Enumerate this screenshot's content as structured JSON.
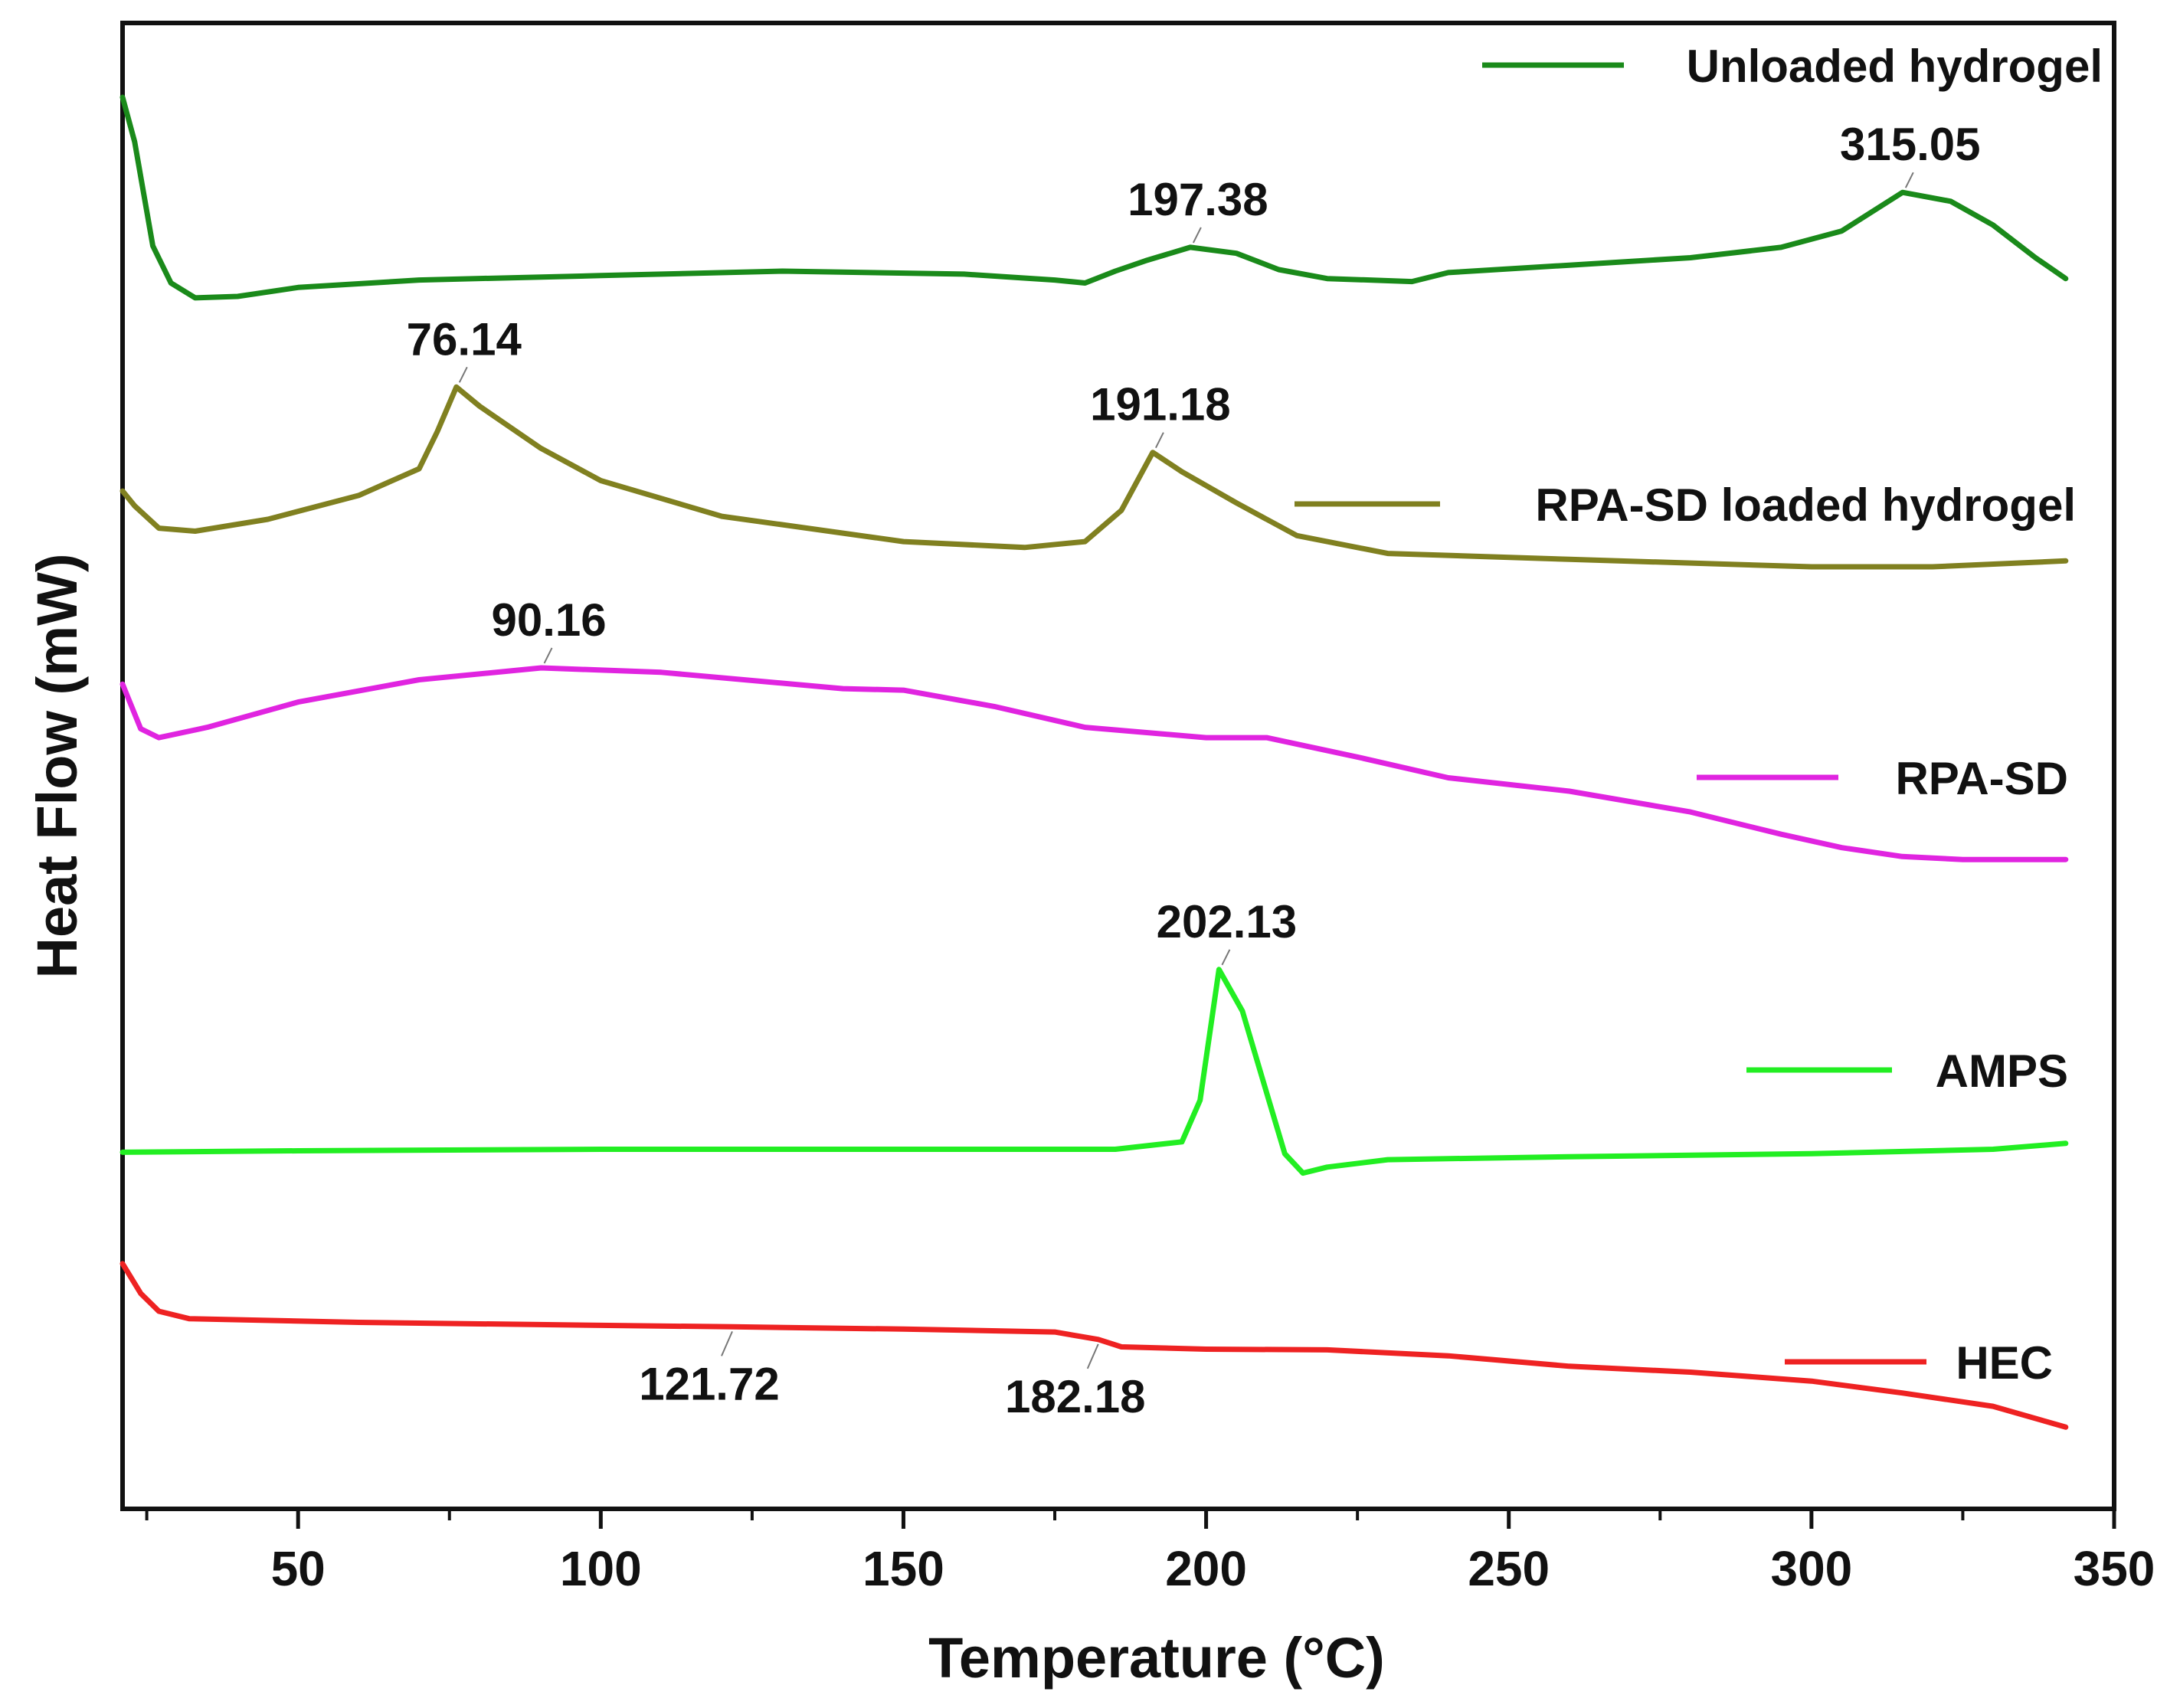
{
  "chart_data": {
    "type": "line",
    "title": "",
    "xlabel": "Temperature (°C)",
    "ylabel": "Heat Flow (mW)",
    "xlim": [
      21,
      350
    ],
    "ylim": [
      0,
      100
    ],
    "xticks": [
      50,
      100,
      150,
      200,
      250,
      300,
      350
    ],
    "y_tick_labels": false,
    "grid": false,
    "legend_placement": "right, each entry beside its curve",
    "series": [
      {
        "name": "Unloaded hydrogel",
        "color": "#1a8a1a",
        "points": [
          [
            21,
            95
          ],
          [
            23,
            92
          ],
          [
            26,
            85
          ],
          [
            29,
            82.5
          ],
          [
            33,
            81.5
          ],
          [
            40,
            81.6
          ],
          [
            50,
            82.2
          ],
          [
            70,
            82.7
          ],
          [
            100,
            83.0
          ],
          [
            130,
            83.3
          ],
          [
            160,
            83.1
          ],
          [
            175,
            82.7
          ],
          [
            180,
            82.5
          ],
          [
            185,
            83.3
          ],
          [
            190,
            84.0
          ],
          [
            197.38,
            84.9
          ],
          [
            205,
            84.5
          ],
          [
            212,
            83.4
          ],
          [
            220,
            82.8
          ],
          [
            234,
            82.6
          ],
          [
            240,
            83.2
          ],
          [
            260,
            83.7
          ],
          [
            280,
            84.2
          ],
          [
            295,
            84.9
          ],
          [
            305,
            86.0
          ],
          [
            315.05,
            88.6
          ],
          [
            323,
            88.0
          ],
          [
            330,
            86.4
          ],
          [
            337,
            84.2
          ],
          [
            342,
            82.8
          ]
        ]
      },
      {
        "name": "RPA-SD loaded hydrogel",
        "color": "#808020",
        "points": [
          [
            21,
            68.5
          ],
          [
            23,
            67.5
          ],
          [
            27,
            66.0
          ],
          [
            33,
            65.8
          ],
          [
            45,
            66.6
          ],
          [
            60,
            68.2
          ],
          [
            70,
            70.0
          ],
          [
            73,
            72.5
          ],
          [
            76.14,
            75.5
          ],
          [
            80,
            74.2
          ],
          [
            90,
            71.4
          ],
          [
            100,
            69.2
          ],
          [
            120,
            66.8
          ],
          [
            150,
            65.1
          ],
          [
            170,
            64.7
          ],
          [
            180,
            65.1
          ],
          [
            186,
            67.2
          ],
          [
            191.18,
            71.1
          ],
          [
            196,
            69.8
          ],
          [
            205,
            67.7
          ],
          [
            215,
            65.5
          ],
          [
            230,
            64.3
          ],
          [
            260,
            63.9
          ],
          [
            300,
            63.4
          ],
          [
            320,
            63.4
          ],
          [
            342,
            63.8
          ]
        ]
      },
      {
        "name": "RPA-SD",
        "color": "#e024e0",
        "points": [
          [
            21,
            55.5
          ],
          [
            24,
            52.5
          ],
          [
            27,
            51.9
          ],
          [
            35,
            52.6
          ],
          [
            50,
            54.3
          ],
          [
            70,
            55.8
          ],
          [
            90.16,
            56.6
          ],
          [
            110,
            56.3
          ],
          [
            140,
            55.2
          ],
          [
            150,
            55.1
          ],
          [
            165,
            54.0
          ],
          [
            180,
            52.6
          ],
          [
            200,
            51.9
          ],
          [
            210,
            51.9
          ],
          [
            225,
            50.6
          ],
          [
            240,
            49.2
          ],
          [
            260,
            48.3
          ],
          [
            280,
            46.9
          ],
          [
            295,
            45.4
          ],
          [
            305,
            44.5
          ],
          [
            315,
            43.9
          ],
          [
            325,
            43.7
          ],
          [
            342,
            43.7
          ]
        ]
      },
      {
        "name": "AMPS",
        "color": "#22ee22",
        "points": [
          [
            21,
            24.0
          ],
          [
            50,
            24.1
          ],
          [
            100,
            24.2
          ],
          [
            150,
            24.2
          ],
          [
            185,
            24.2
          ],
          [
            196,
            24.7
          ],
          [
            199,
            27.5
          ],
          [
            202.13,
            36.3
          ],
          [
            206,
            33.5
          ],
          [
            210,
            28.0
          ],
          [
            213,
            23.9
          ],
          [
            216,
            22.6
          ],
          [
            220,
            23.0
          ],
          [
            230,
            23.5
          ],
          [
            260,
            23.7
          ],
          [
            300,
            23.9
          ],
          [
            330,
            24.2
          ],
          [
            342,
            24.6
          ]
        ]
      },
      {
        "name": "HEC",
        "color": "#ee2222",
        "points": [
          [
            21,
            16.5
          ],
          [
            24,
            14.5
          ],
          [
            27,
            13.3
          ],
          [
            32,
            12.8
          ],
          [
            60,
            12.55
          ],
          [
            100,
            12.35
          ],
          [
            121.72,
            12.25
          ],
          [
            150,
            12.1
          ],
          [
            175,
            11.9
          ],
          [
            182.18,
            11.4
          ],
          [
            186,
            10.9
          ],
          [
            200,
            10.75
          ],
          [
            220,
            10.7
          ],
          [
            240,
            10.3
          ],
          [
            260,
            9.6
          ],
          [
            280,
            9.2
          ],
          [
            300,
            8.6
          ],
          [
            315,
            7.8
          ],
          [
            330,
            6.9
          ],
          [
            342,
            5.5
          ]
        ]
      }
    ],
    "annotations": [
      {
        "text": "197.38",
        "series": "Unloaded hydrogel",
        "x": 197.38
      },
      {
        "text": "315.05",
        "series": "Unloaded hydrogel",
        "x": 315.05
      },
      {
        "text": "76.14",
        "series": "RPA-SD loaded hydrogel",
        "x": 76.14
      },
      {
        "text": "191.18",
        "series": "RPA-SD loaded hydrogel",
        "x": 191.18
      },
      {
        "text": "90.16",
        "series": "RPA-SD",
        "x": 90.16
      },
      {
        "text": "202.13",
        "series": "AMPS",
        "x": 202.13
      },
      {
        "text": "121.72",
        "series": "HEC",
        "x": 121.72
      },
      {
        "text": "182.18",
        "series": "HEC",
        "x": 182.18
      }
    ]
  }
}
